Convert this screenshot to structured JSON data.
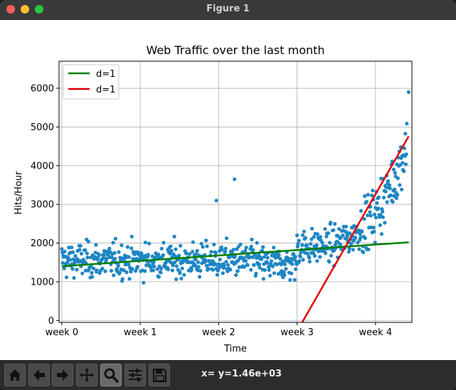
{
  "window": {
    "title": "Figure 1",
    "colors": {
      "close": "#fe5f57",
      "minimize": "#febc2e",
      "zoom": "#28c840"
    }
  },
  "toolbar": {
    "buttons": [
      {
        "name": "home-button",
        "icon": "home-icon"
      },
      {
        "name": "back-button",
        "icon": "arrow-left-icon"
      },
      {
        "name": "forward-button",
        "icon": "arrow-right-icon"
      },
      {
        "name": "pan-button",
        "icon": "move-icon"
      },
      {
        "name": "zoom-button",
        "icon": "magnifier-icon",
        "active": true
      },
      {
        "name": "configure-subplots-button",
        "icon": "sliders-icon"
      },
      {
        "name": "save-button",
        "icon": "floppy-disk-icon"
      }
    ],
    "coordinates": "x= y=1.46e+03"
  },
  "chart_data": {
    "type": "scatter",
    "title": "Web Traffic over the last month",
    "xlabel": "Time",
    "ylabel": "Hits/Hour",
    "xlim": [
      -6,
      750
    ],
    "ylim": [
      -50,
      6700
    ],
    "xticks": [
      {
        "value": 0,
        "label": "week 0"
      },
      {
        "value": 168,
        "label": "week 1"
      },
      {
        "value": 336,
        "label": "week 2"
      },
      {
        "value": 504,
        "label": "week 3"
      },
      {
        "value": 672,
        "label": "week 4"
      }
    ],
    "yticks": [
      0,
      1000,
      2000,
      3000,
      4000,
      5000,
      6000
    ],
    "grid": true,
    "legend_position": "top-left",
    "point_color": "#1f86c4",
    "series": [
      {
        "name": "d=1",
        "type": "line",
        "color": "#008000",
        "x": [
          0,
          743
        ],
        "y": [
          1400,
          2020
        ]
      },
      {
        "name": "d=1",
        "type": "line",
        "color": "#e00000",
        "x": [
          515,
          743
        ],
        "y": [
          -50,
          4760
        ]
      }
    ],
    "scatter_summary": {
      "count": 740,
      "phase1_mean": 1550,
      "phase1_spread": 380,
      "outliers": [
        [
          331,
          3100
        ],
        [
          370,
          3650
        ]
      ],
      "max_point": [
        743,
        5900
      ]
    }
  }
}
